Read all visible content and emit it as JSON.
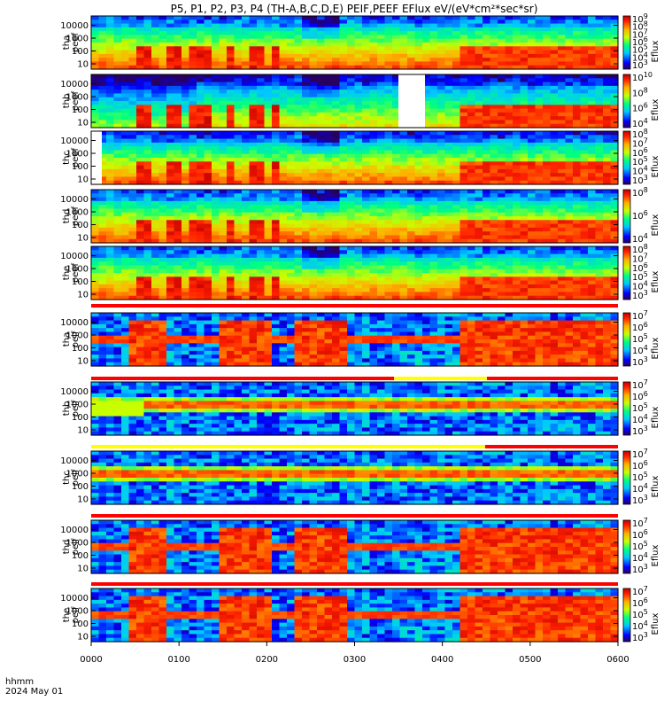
{
  "chart_data": {
    "type": "heatmap",
    "title": "P5, P1, P2, P3, P4 (TH-A,B,C,D,E) PEIF,PEEF EFlux eV/(eV*cm²*sec*sr)",
    "xlabel_line1": "hhmm",
    "xlabel_line2": "2024 May 01",
    "x_ticks": [
      "0000",
      "0100",
      "0200",
      "0300",
      "0400",
      "0500",
      "0600"
    ],
    "x_range": [
      "0000",
      "0600"
    ],
    "y_ticks": [
      "10",
      "100",
      "1000",
      "10000"
    ],
    "y_scale": "log",
    "colorbar_label": "Eflux",
    "panels": [
      {
        "label1": "tha",
        "label2": "peef",
        "colorbar_ticks": [
          "10^3",
          "10^4",
          "10^5",
          "10^6",
          "10^7",
          "10^8",
          "10^9"
        ],
        "type": "e"
      },
      {
        "label1": "thb",
        "label2": "peef",
        "colorbar_ticks": [
          "10^4",
          "10^6",
          "10^8",
          "10^10"
        ],
        "type": "eb"
      },
      {
        "label1": "thc",
        "label2": "peef",
        "colorbar_ticks": [
          "10^3",
          "10^4",
          "10^5",
          "10^6",
          "10^7",
          "10^8"
        ],
        "type": "ec"
      },
      {
        "label1": "thd",
        "label2": "peef",
        "colorbar_ticks": [
          "10^4",
          "10^6",
          "10^8"
        ],
        "type": "e"
      },
      {
        "label1": "the",
        "label2": "peef",
        "colorbar_ticks": [
          "10^3",
          "10^4",
          "10^5",
          "10^6",
          "10^7",
          "10^8"
        ],
        "type": "e"
      },
      {
        "label1": "tha",
        "label2": "peif",
        "colorbar_ticks": [
          "10^3",
          "10^4",
          "10^5",
          "10^6",
          "10^7"
        ],
        "type": "i"
      },
      {
        "label1": "thb",
        "label2": "peif",
        "colorbar_ticks": [
          "10^3",
          "10^4",
          "10^5",
          "10^6",
          "10^7"
        ],
        "type": "ib"
      },
      {
        "label1": "thc",
        "label2": "peif",
        "colorbar_ticks": [
          "10^3",
          "10^4",
          "10^5",
          "10^6",
          "10^7"
        ],
        "type": "ic"
      },
      {
        "label1": "thd",
        "label2": "peif",
        "colorbar_ticks": [
          "10^3",
          "10^4",
          "10^5",
          "10^6",
          "10^7"
        ],
        "type": "i"
      },
      {
        "label1": "the",
        "label2": "peif",
        "colorbar_ticks": [
          "10^3",
          "10^4",
          "10^5",
          "10^6",
          "10^7"
        ],
        "type": "i"
      }
    ]
  }
}
